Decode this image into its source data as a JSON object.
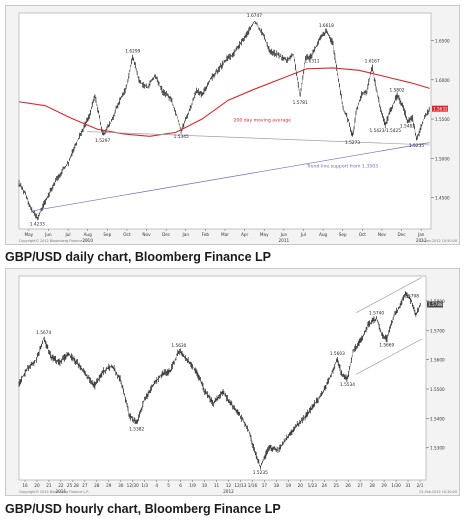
{
  "chart_data": [
    {
      "type": "line",
      "title": "GBP/USD daily chart, Bloomberg Finance LP",
      "x_start_label": "May 2010",
      "x_tick_labels": [
        "May",
        "Jun",
        "Jul",
        "Aug",
        "Sep",
        "Oct",
        "Nov",
        "Dec",
        "Jan",
        "Feb",
        "Mar",
        "Apr",
        "May",
        "Jun",
        "Jul",
        "Aug",
        "Sep",
        "Oct",
        "Nov",
        "Dec",
        "Jan"
      ],
      "x_year_labels": [
        {
          "label": "2010",
          "at_month": 3
        },
        {
          "label": "2011",
          "at_month": 13
        },
        {
          "label": "2012",
          "at_month": 20
        }
      ],
      "y_tick_labels": [
        "1.4500",
        "1.5000",
        "1.5500",
        "1.6000",
        "1.6500"
      ],
      "ylim": [
        1.41,
        1.685
      ],
      "series": [
        {
          "name": "GBP/USD",
          "color": "#222222",
          "points": [
            [
              0,
              1.468
            ],
            [
              0.25,
              1.455
            ],
            [
              0.45,
              1.436
            ],
            [
              0.7,
              1.4233
            ],
            [
              1.0,
              1.445
            ],
            [
              1.3,
              1.465
            ],
            [
              1.6,
              1.482
            ],
            [
              1.9,
              1.495
            ],
            [
              2.1,
              1.513
            ],
            [
              2.4,
              1.534
            ],
            [
              2.7,
              1.555
            ],
            [
              2.9,
              1.58
            ],
            [
              3.05,
              1.557
            ],
            [
              3.2,
              1.5297
            ],
            [
              3.5,
              1.545
            ],
            [
              3.8,
              1.57
            ],
            [
              4.1,
              1.59
            ],
            [
              4.35,
              1.6299
            ],
            [
              4.6,
              1.598
            ],
            [
              4.9,
              1.59
            ],
            [
              5.2,
              1.605
            ],
            [
              5.5,
              1.585
            ],
            [
              5.8,
              1.576
            ],
            [
              6.05,
              1.553
            ],
            [
              6.2,
              1.5345
            ],
            [
              6.5,
              1.56
            ],
            [
              6.8,
              1.586
            ],
            [
              7.0,
              1.58
            ],
            [
              7.3,
              1.6
            ],
            [
              7.6,
              1.612
            ],
            [
              7.9,
              1.625
            ],
            [
              8.2,
              1.633
            ],
            [
              8.5,
              1.648
            ],
            [
              8.8,
              1.662
            ],
            [
              9.0,
              1.6747
            ],
            [
              9.3,
              1.66
            ],
            [
              9.6,
              1.636
            ],
            [
              9.9,
              1.632
            ],
            [
              10.2,
              1.625
            ],
            [
              10.5,
              1.632
            ],
            [
              10.75,
              1.5781
            ],
            [
              10.95,
              1.628
            ],
            [
              11.2,
              1.6311
            ],
            [
              11.5,
              1.652
            ],
            [
              11.75,
              1.6618
            ],
            [
              12.0,
              1.646
            ],
            [
              12.2,
              1.603
            ],
            [
              12.4,
              1.562
            ],
            [
              12.6,
              1.548
            ],
            [
              12.75,
              1.5273
            ],
            [
              12.9,
              1.561
            ],
            [
              13.1,
              1.582
            ],
            [
              13.3,
              1.585
            ],
            [
              13.5,
              1.6167
            ],
            [
              13.65,
              1.59
            ],
            [
              13.8,
              1.567
            ],
            [
              14.0,
              1.5423
            ],
            [
              14.2,
              1.561
            ],
            [
              14.45,
              1.5802
            ],
            [
              14.65,
              1.568
            ],
            [
              14.85,
              1.5482
            ],
            [
              15.05,
              1.551
            ],
            [
              15.2,
              1.5235
            ],
            [
              15.45,
              1.548
            ],
            [
              15.7,
              1.563
            ]
          ]
        },
        {
          "name": "200 day moving average",
          "color": "#e0262b",
          "points": [
            [
              0,
              1.572
            ],
            [
              1,
              1.567
            ],
            [
              2,
              1.551
            ],
            [
              3,
              1.537
            ],
            [
              4,
              1.531
            ],
            [
              5,
              1.528
            ],
            [
              6,
              1.533
            ],
            [
              7,
              1.55
            ],
            [
              8,
              1.574
            ],
            [
              9,
              1.588
            ],
            [
              10,
              1.601
            ],
            [
              11,
              1.614
            ],
            [
              12,
              1.615
            ],
            [
              13,
              1.612
            ],
            [
              14,
              1.604
            ],
            [
              15,
              1.596
            ],
            [
              15.7,
              1.589
            ]
          ]
        },
        {
          "name": "Trend-line support from 1.3503",
          "color": "#6b6bcf",
          "points": [
            [
              0.5,
              1.433
            ],
            [
              15.7,
              1.52
            ]
          ]
        },
        {
          "name": "Upper trend line",
          "color": "#9aa0b0",
          "points": [
            [
              2.6,
              1.534
            ],
            [
              15.7,
              1.517
            ]
          ]
        }
      ],
      "last_price": {
        "value": 1.5632,
        "label": "1.5632",
        "color": "#e0262b"
      },
      "annotations": [
        {
          "text": "1.4233",
          "x": 0.7,
          "y": 1.4233,
          "pos": "below"
        },
        {
          "text": "1.5297",
          "x": 3.2,
          "y": 1.5297,
          "pos": "below"
        },
        {
          "text": "1.6299",
          "x": 4.35,
          "y": 1.6299,
          "pos": "above"
        },
        {
          "text": "1.5345",
          "x": 6.2,
          "y": 1.5345,
          "pos": "below"
        },
        {
          "text": "1.6747",
          "x": 9.0,
          "y": 1.6747,
          "pos": "above"
        },
        {
          "text": "1.5781",
          "x": 10.75,
          "y": 1.5781,
          "pos": "below"
        },
        {
          "text": "1.6311",
          "x": 11.2,
          "y": 1.6311,
          "pos": "below"
        },
        {
          "text": "1.6618",
          "x": 11.75,
          "y": 1.6618,
          "pos": "above"
        },
        {
          "text": "1.5273",
          "x": 12.75,
          "y": 1.5273,
          "pos": "below"
        },
        {
          "text": "1.6167",
          "x": 13.5,
          "y": 1.6167,
          "pos": "above"
        },
        {
          "text": "1.5423/1.5425",
          "x": 14.0,
          "y": 1.5423,
          "pos": "below"
        },
        {
          "text": "1.5802",
          "x": 14.45,
          "y": 1.5802,
          "pos": "above"
        },
        {
          "text": "1.5482",
          "x": 14.85,
          "y": 1.5482,
          "pos": "below"
        },
        {
          "text": "1.5235",
          "x": 15.2,
          "y": 1.5235,
          "pos": "below"
        },
        {
          "text": "200 day moving average",
          "x": 8.2,
          "y": 1.547,
          "pos": "right",
          "color": "#e0262b"
        },
        {
          "text": "Trend-line support from 1.3503",
          "x": 11.0,
          "y": 1.488,
          "pos": "right",
          "color": "#6b6bcf"
        }
      ],
      "footer_left": "Copyright© 2012 Bloomberg Finance L.P.",
      "footer_right": "12-Jan-2012 10:50:00",
      "grid": false
    },
    {
      "type": "line",
      "title": "GBP/USD hourly chart, Bloomberg Finance LP",
      "x_tick_labels": [
        "16",
        "20",
        "21",
        "22",
        "25 28",
        "27",
        "28",
        "29",
        "30",
        "12/30",
        "1/3",
        "4",
        "5",
        "6",
        "1/9",
        "10",
        "11",
        "12",
        "12/13",
        "1/16",
        "17",
        "18",
        "19",
        "20",
        "1/23",
        "24",
        "25",
        "26",
        "27",
        "28",
        "29",
        "1/30",
        "31",
        "2/1"
      ],
      "x_year_labels": [
        {
          "label": "2011",
          "at_tick": 3
        },
        {
          "label": "2012",
          "at_tick": 17
        }
      ],
      "y_tick_labels": [
        "1.5300",
        "1.5400",
        "1.5500",
        "1.5600",
        "1.5700",
        "1.5800"
      ],
      "ylim": [
        1.519,
        1.5885
      ],
      "series": [
        {
          "name": "GBP/USD",
          "color": "#222222",
          "points": [
            [
              0,
              1.552
            ],
            [
              0.3,
              1.557
            ],
            [
              0.6,
              1.56
            ],
            [
              0.85,
              1.5674
            ],
            [
              1.1,
              1.561
            ],
            [
              1.4,
              1.559
            ],
            [
              1.7,
              1.562
            ],
            [
              2.0,
              1.559
            ],
            [
              2.3,
              1.555
            ],
            [
              2.6,
              1.551
            ],
            [
              2.9,
              1.556
            ],
            [
              3.2,
              1.558
            ],
            [
              3.5,
              1.553
            ],
            [
              3.8,
              1.541
            ],
            [
              4.05,
              1.5382
            ],
            [
              4.3,
              1.546
            ],
            [
              4.6,
              1.551
            ],
            [
              4.9,
              1.555
            ],
            [
              5.2,
              1.556
            ],
            [
              5.5,
              1.563
            ],
            [
              5.8,
              1.56
            ],
            [
              6.1,
              1.556
            ],
            [
              6.4,
              1.549
            ],
            [
              6.7,
              1.545
            ],
            [
              7.0,
              1.549
            ],
            [
              7.3,
              1.545
            ],
            [
              7.6,
              1.541
            ],
            [
              7.9,
              1.536
            ],
            [
              8.1,
              1.529
            ],
            [
              8.3,
              1.5235
            ],
            [
              8.6,
              1.53
            ],
            [
              8.9,
              1.529
            ],
            [
              9.2,
              1.533
            ],
            [
              9.5,
              1.537
            ],
            [
              9.8,
              1.54
            ],
            [
              10.1,
              1.544
            ],
            [
              10.4,
              1.548
            ],
            [
              10.7,
              1.554
            ],
            [
              10.95,
              1.5603
            ],
            [
              11.1,
              1.555
            ],
            [
              11.3,
              1.5534
            ],
            [
              11.5,
              1.563
            ],
            [
              11.8,
              1.567
            ],
            [
              12.0,
              1.572
            ],
            [
              12.3,
              1.574
            ],
            [
              12.5,
              1.568
            ],
            [
              12.65,
              1.5669
            ],
            [
              12.9,
              1.575
            ],
            [
              13.1,
              1.578
            ],
            [
              13.3,
              1.583
            ],
            [
              13.5,
              1.5798
            ],
            [
              13.65,
              1.575
            ],
            [
              13.8,
              1.5788
            ]
          ]
        },
        {
          "name": "Upper channel",
          "color": "#9aa0b0",
          "points": [
            [
              11.6,
              1.576
            ],
            [
              13.85,
              1.588
            ]
          ]
        },
        {
          "name": "Lower channel",
          "color": "#9aa0b0",
          "points": [
            [
              11.6,
              1.555
            ],
            [
              13.85,
              1.567
            ]
          ]
        }
      ],
      "last_price": {
        "value": 1.5788,
        "label": "1.5788",
        "color": "#444444"
      },
      "annotations": [
        {
          "text": "1.5674",
          "x": 0.85,
          "y": 1.5674,
          "pos": "above"
        },
        {
          "text": "1.5382",
          "x": 4.05,
          "y": 1.5382,
          "pos": "below"
        },
        {
          "text": "1.5630",
          "x": 5.5,
          "y": 1.563,
          "pos": "above"
        },
        {
          "text": "1.5235",
          "x": 8.3,
          "y": 1.5235,
          "pos": "below"
        },
        {
          "text": "1.5603",
          "x": 10.95,
          "y": 1.5603,
          "pos": "above"
        },
        {
          "text": "1.5534",
          "x": 11.3,
          "y": 1.5534,
          "pos": "below"
        },
        {
          "text": "1.5740",
          "x": 12.3,
          "y": 1.574,
          "pos": "above"
        },
        {
          "text": "1.5669",
          "x": 12.65,
          "y": 1.5669,
          "pos": "below"
        },
        {
          "text": "1.5798",
          "x": 13.5,
          "y": 1.5798,
          "pos": "above"
        }
      ],
      "footer_left": "Copyright© 2012 Bloomberg Finance L.P.",
      "footer_right": "01-Feb-2012 10:30:00",
      "grid": false
    }
  ]
}
